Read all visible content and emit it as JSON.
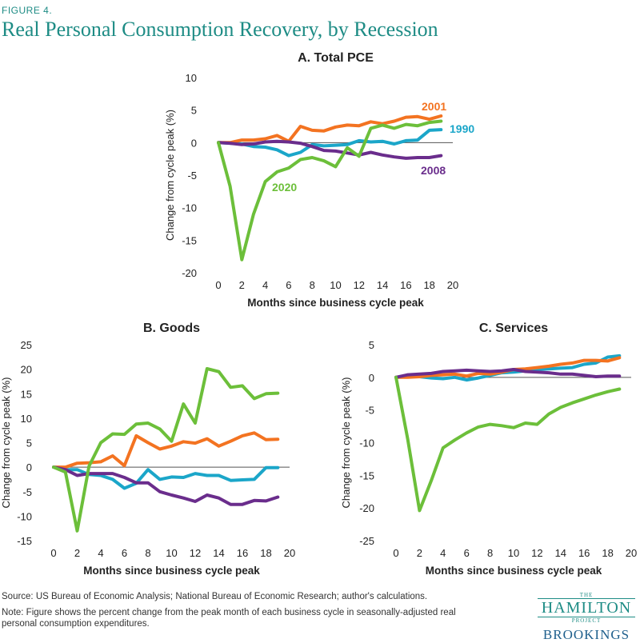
{
  "figure_label": "FIGURE 4.",
  "figure_title": "Real Personal Consumption Recovery, by Recession",
  "source": "Source: US Bureau of Economic Analysis; National Bureau of Economic Research; author's calculations.",
  "note_line1": "Note: Figure shows the percent change from the peak month of each business cycle in seasonally-adjusted real",
  "note_line2": "personal consumption expenditures.",
  "logo": {
    "the": "THE",
    "hamilton": "HAMILTON",
    "project": "PROJECT",
    "brookings": "BROOKINGS"
  },
  "colors": {
    "1990": "#1ba6c9",
    "2001": "#f37321",
    "2008": "#6a2d8c",
    "2020": "#6cbf3a",
    "title": "#1e8c85"
  },
  "chart_data": [
    {
      "id": "pce",
      "type": "line",
      "title": "A. Total PCE",
      "xlabel": "Months since business cycle peak",
      "ylabel": "Change from cycle peak (%)",
      "xlim": [
        0,
        20
      ],
      "ylim": [
        -20,
        10
      ],
      "xticks": [
        0,
        2,
        4,
        6,
        8,
        10,
        12,
        14,
        16,
        18,
        20
      ],
      "yticks": [
        10,
        5,
        0,
        -5,
        -10,
        -15,
        -20
      ],
      "x": [
        0,
        1,
        2,
        3,
        4,
        5,
        6,
        7,
        8,
        9,
        10,
        11,
        12,
        13,
        14,
        15,
        16,
        17,
        18,
        19
      ],
      "series": [
        {
          "name": "1990",
          "values": [
            0,
            -0.1,
            -0.2,
            -0.6,
            -0.7,
            -1.1,
            -2.0,
            -1.5,
            -0.3,
            -0.5,
            -0.4,
            -0.3,
            0.3,
            0.1,
            0.2,
            -0.2,
            0.3,
            0.4,
            1.9,
            2.0
          ]
        },
        {
          "name": "2001",
          "values": [
            0,
            0.0,
            0.4,
            0.4,
            0.6,
            1.1,
            0.2,
            2.5,
            1.9,
            1.8,
            2.4,
            2.7,
            2.6,
            3.2,
            2.9,
            3.3,
            3.9,
            4.0,
            3.6,
            4.1
          ]
        },
        {
          "name": "2008",
          "values": [
            0,
            -0.1,
            -0.3,
            -0.2,
            0.1,
            0.2,
            0.1,
            -0.1,
            -0.6,
            -1.2,
            -1.3,
            -1.6,
            -1.9,
            -1.5,
            -1.9,
            -2.2,
            -2.4,
            -2.3,
            -2.3,
            -2.0
          ]
        },
        {
          "name": "2020",
          "values": [
            0,
            -6.7,
            -18.0,
            -11.0,
            -6.0,
            -4.5,
            -3.9,
            -2.6,
            -2.3,
            -2.8,
            -3.7,
            -0.8,
            -2.1,
            2.2,
            2.7,
            2.2,
            2.8,
            2.6,
            3.1,
            3.3
          ]
        }
      ],
      "labels": {
        "2001": "2001",
        "1990": "1990",
        "2008": "2008",
        "2020": "2020"
      }
    },
    {
      "id": "goods",
      "type": "line",
      "title": "B. Goods",
      "xlabel": "Months since business cycle peak",
      "ylabel": "Change from cycle peak (%)",
      "xlim": [
        0,
        20
      ],
      "ylim": [
        -15,
        25
      ],
      "xticks": [
        0,
        2,
        4,
        6,
        8,
        10,
        12,
        14,
        16,
        18,
        20
      ],
      "yticks": [
        25,
        20,
        15,
        10,
        5,
        0,
        -5,
        -10,
        -15
      ],
      "x": [
        0,
        1,
        2,
        3,
        4,
        5,
        6,
        7,
        8,
        9,
        10,
        11,
        12,
        13,
        14,
        15,
        16,
        17,
        18,
        19
      ],
      "series": [
        {
          "name": "1990",
          "values": [
            0,
            -0.5,
            -0.5,
            -1.5,
            -1.7,
            -2.5,
            -4.3,
            -3.3,
            -0.5,
            -2.5,
            -2.0,
            -2.1,
            -1.3,
            -1.7,
            -1.7,
            -2.7,
            -2.6,
            -2.5,
            -0.1,
            -0.1
          ]
        },
        {
          "name": "2001",
          "values": [
            0,
            0.0,
            0.8,
            0.9,
            1.1,
            2.3,
            0.3,
            6.4,
            5.0,
            3.7,
            4.3,
            5.2,
            4.9,
            5.8,
            4.3,
            5.3,
            6.4,
            7.0,
            5.6,
            5.7
          ]
        },
        {
          "name": "2008",
          "values": [
            0,
            -0.5,
            -1.7,
            -1.3,
            -1.3,
            -1.3,
            -2.1,
            -3.2,
            -3.2,
            -5.0,
            -5.7,
            -6.3,
            -7.0,
            -5.7,
            -6.3,
            -7.6,
            -7.6,
            -6.8,
            -6.9,
            -6.1
          ]
        },
        {
          "name": "2020",
          "values": [
            0,
            -1.0,
            -13.0,
            0.2,
            5.0,
            6.8,
            6.7,
            8.8,
            9.0,
            7.8,
            5.3,
            12.9,
            9.0,
            20.1,
            19.5,
            16.3,
            16.6,
            14.0,
            15.0,
            15.1
          ]
        }
      ]
    },
    {
      "id": "services",
      "type": "line",
      "title": "C. Services",
      "xlabel": "Months since business cycle peak",
      "ylabel": "Change from cycle peak (%)",
      "xlim": [
        0,
        20
      ],
      "ylim": [
        -25,
        5
      ],
      "xticks": [
        0,
        2,
        4,
        6,
        8,
        10,
        12,
        14,
        16,
        18,
        20
      ],
      "yticks": [
        5,
        0,
        -5,
        -10,
        -15,
        -20,
        -25
      ],
      "x": [
        0,
        1,
        2,
        3,
        4,
        5,
        6,
        7,
        8,
        9,
        10,
        11,
        12,
        13,
        14,
        15,
        16,
        17,
        18,
        19
      ],
      "series": [
        {
          "name": "1990",
          "values": [
            0,
            0.1,
            0.1,
            -0.1,
            -0.2,
            0.0,
            -0.4,
            -0.1,
            0.3,
            0.7,
            0.8,
            1.0,
            1.2,
            1.3,
            1.4,
            1.5,
            2.0,
            2.2,
            3.1,
            3.3
          ]
        },
        {
          "name": "2001",
          "values": [
            0,
            0.0,
            0.1,
            0.3,
            0.4,
            0.5,
            0.2,
            0.6,
            0.5,
            0.8,
            1.2,
            1.3,
            1.5,
            1.7,
            2.0,
            2.2,
            2.6,
            2.6,
            2.5,
            3.0
          ]
        },
        {
          "name": "2008",
          "values": [
            0,
            0.4,
            0.5,
            0.6,
            0.9,
            1.0,
            1.1,
            1.0,
            0.9,
            1.0,
            1.2,
            0.9,
            0.8,
            0.7,
            0.5,
            0.5,
            0.3,
            0.1,
            0.2,
            0.2
          ]
        },
        {
          "name": "2020",
          "values": [
            0,
            -9.5,
            -20.4,
            -15.8,
            -10.8,
            -9.6,
            -8.5,
            -7.6,
            -7.2,
            -7.4,
            -7.7,
            -7.0,
            -7.2,
            -5.6,
            -4.6,
            -3.9,
            -3.3,
            -2.7,
            -2.2,
            -1.8
          ]
        }
      ]
    }
  ]
}
